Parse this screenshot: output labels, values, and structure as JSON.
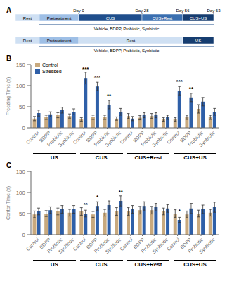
{
  "diagram": {
    "label": "A",
    "timelines": [
      {
        "segments": [
          "Rest",
          "Pretreatment",
          "CUS",
          "CUS+Rest",
          "CUS+US"
        ],
        "days": [
          "Day 0",
          "Day 28",
          "Day 56",
          "Day 63"
        ],
        "treatment": "Vehicle, BDPP, Probiotic, Synbiotic"
      },
      {
        "segments": [
          "Rest",
          "Pretreatment",
          "Rest",
          "US"
        ],
        "treatment": "Vehicle, BDPP, Probiotic, Synbiotic"
      }
    ]
  },
  "chart_data": [
    {
      "type": "bar",
      "title": "B",
      "y_label": "Freezing Time (s)",
      "groups": [
        "US",
        "CUS",
        "CUS+Rest",
        "CUS+US"
      ],
      "categories": [
        "Control",
        "BDPP",
        "Probiotic",
        "Synbiotic",
        "Control",
        "BDPP",
        "Probiotic",
        "Synbiotic",
        "Control",
        "BDPP",
        "Probiotic",
        "Synbiotic",
        "Control",
        "BDPP",
        "Probiotic",
        "Synbiotic"
      ],
      "series": [
        {
          "name": "Control",
          "color": "#c8a97e",
          "values": [
            22,
            25,
            30,
            28,
            20,
            25,
            25,
            22,
            28,
            24,
            28,
            20,
            20,
            25,
            45,
            25
          ],
          "errors": [
            5,
            5,
            6,
            5,
            4,
            5,
            5,
            4,
            6,
            5,
            6,
            4,
            4,
            5,
            10,
            5
          ]
        },
        {
          "name": "Stressed",
          "color": "#2e5fa8",
          "values": [
            35,
            32,
            42,
            38,
            118,
            98,
            55,
            38,
            22,
            30,
            30,
            25,
            88,
            72,
            62,
            38
          ],
          "errors": [
            7,
            6,
            7,
            7,
            14,
            10,
            10,
            8,
            5,
            6,
            6,
            5,
            10,
            10,
            10,
            8
          ]
        }
      ],
      "annotations": [
        {
          "text": "***",
          "category": 4
        },
        {
          "text": "***",
          "category": 5
        },
        {
          "text": "**",
          "category": 6
        },
        {
          "text": "***",
          "category": 12
        },
        {
          "text": "**",
          "category": 13
        }
      ],
      "ylim": [
        0,
        150
      ],
      "yticks": [
        0,
        50,
        100,
        150
      ],
      "grid": false,
      "legend": "upper left"
    },
    {
      "type": "bar",
      "title": "C",
      "y_label": "Center Time (s)",
      "groups": [
        "US",
        "CUS",
        "CUS+Rest",
        "CUS+US"
      ],
      "categories": [
        "Control",
        "BDPP",
        "Probiotic",
        "Synbiotic",
        "Control",
        "BDPP",
        "Probiotic",
        "Synbiotic",
        "Control",
        "BDPP",
        "Probiotic",
        "Synbiotic",
        "Control",
        "BDPP",
        "Probiotic",
        "Synbiotic"
      ],
      "series": [
        {
          "name": "Control",
          "color": "#c8a97e",
          "values": [
            48,
            50,
            55,
            52,
            55,
            48,
            52,
            55,
            55,
            58,
            58,
            55,
            50,
            48,
            50,
            52
          ],
          "errors": [
            8,
            7,
            8,
            8,
            9,
            7,
            8,
            9,
            9,
            9,
            9,
            8,
            9,
            8,
            8,
            8
          ]
        },
        {
          "name": "Stressed",
          "color": "#2e5fa8",
          "values": [
            55,
            58,
            60,
            60,
            50,
            68,
            70,
            80,
            60,
            68,
            65,
            62,
            35,
            62,
            60,
            65
          ],
          "errors": [
            8,
            8,
            9,
            9,
            8,
            10,
            10,
            12,
            9,
            10,
            9,
            9,
            6,
            12,
            10,
            12
          ]
        }
      ],
      "annotations": [
        {
          "text": "**",
          "category": 4
        },
        {
          "text": "*",
          "category": 5
        },
        {
          "text": "**",
          "category": 7
        },
        {
          "text": "*",
          "category": 12
        }
      ],
      "ylim": [
        0,
        150
      ],
      "yticks": [
        0,
        50,
        100,
        150
      ],
      "grid": false
    }
  ]
}
